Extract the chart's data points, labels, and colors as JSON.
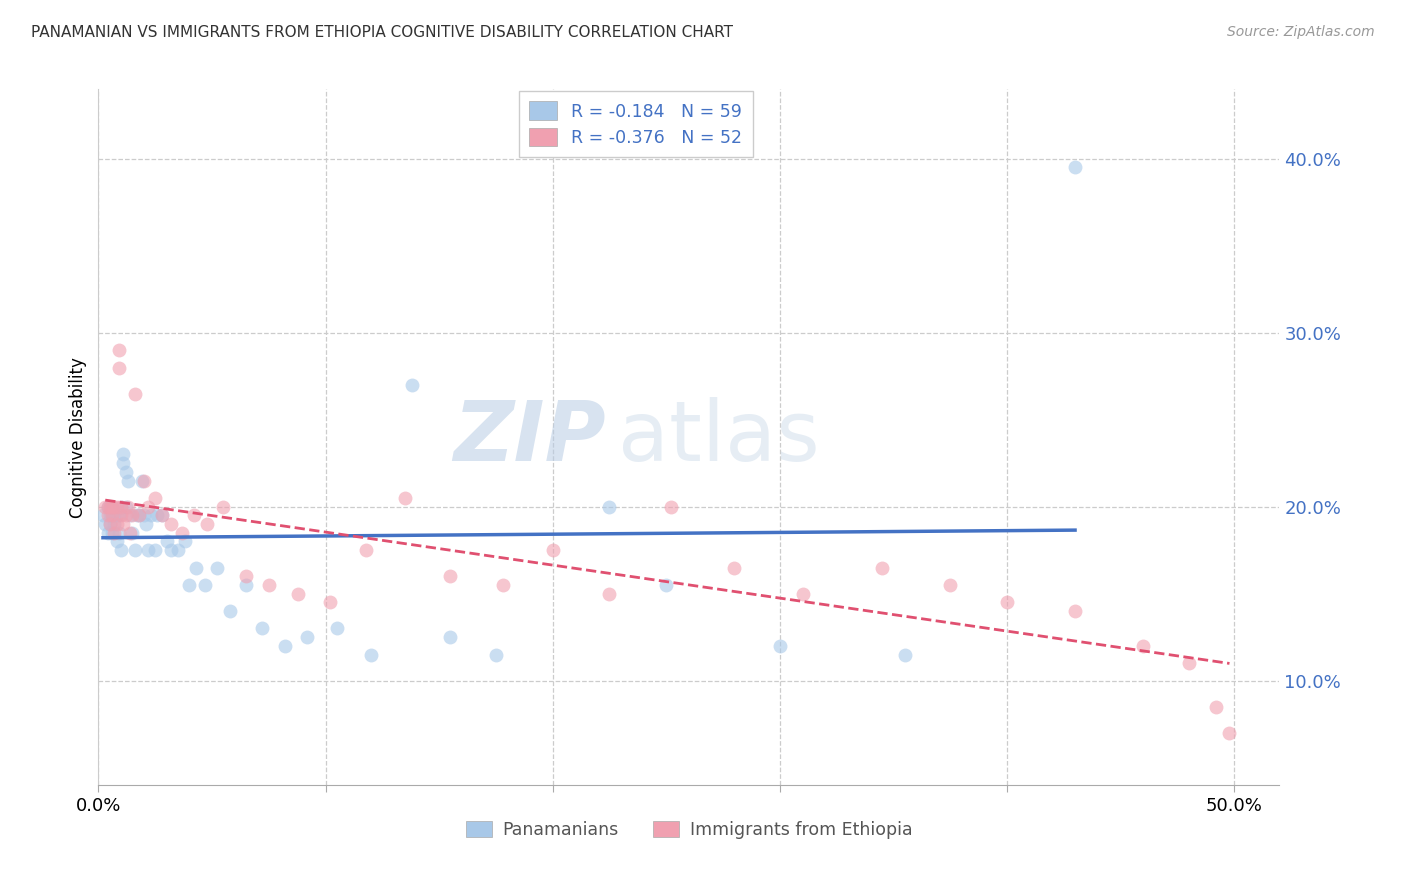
{
  "title": "PANAMANIAN VS IMMIGRANTS FROM ETHIOPIA COGNITIVE DISABILITY CORRELATION CHART",
  "source": "Source: ZipAtlas.com",
  "ylabel": "Cognitive Disability",
  "xlim": [
    0.0,
    0.52
  ],
  "ylim": [
    0.04,
    0.44
  ],
  "ytick_vals": [
    0.1,
    0.2,
    0.3,
    0.4
  ],
  "legend_r1": "-0.184",
  "legend_n1": "59",
  "legend_r2": "-0.376",
  "legend_n2": "52",
  "watermark_zip": "ZIP",
  "watermark_atlas": "atlas",
  "blue_scatter_color": "#a8c8e8",
  "pink_scatter_color": "#f0a0b0",
  "blue_line_color": "#4472c4",
  "pink_line_color": "#e05070",
  "scatter_alpha": 0.6,
  "scatter_size": 100,
  "pan_x": [
    0.002,
    0.003,
    0.004,
    0.004,
    0.005,
    0.005,
    0.005,
    0.006,
    0.006,
    0.006,
    0.007,
    0.007,
    0.008,
    0.008,
    0.009,
    0.009,
    0.01,
    0.01,
    0.011,
    0.011,
    0.012,
    0.012,
    0.013,
    0.014,
    0.015,
    0.016,
    0.017,
    0.018,
    0.019,
    0.02,
    0.021,
    0.022,
    0.023,
    0.025,
    0.026,
    0.028,
    0.03,
    0.032,
    0.035,
    0.038,
    0.04,
    0.043,
    0.047,
    0.052,
    0.058,
    0.065,
    0.072,
    0.082,
    0.092,
    0.105,
    0.12,
    0.138,
    0.155,
    0.175,
    0.225,
    0.25,
    0.3,
    0.355,
    0.43
  ],
  "pan_y": [
    0.195,
    0.19,
    0.185,
    0.2,
    0.19,
    0.195,
    0.2,
    0.185,
    0.195,
    0.2,
    0.19,
    0.195,
    0.18,
    0.195,
    0.185,
    0.195,
    0.2,
    0.175,
    0.23,
    0.225,
    0.22,
    0.2,
    0.215,
    0.195,
    0.185,
    0.175,
    0.195,
    0.195,
    0.215,
    0.195,
    0.19,
    0.175,
    0.195,
    0.175,
    0.195,
    0.195,
    0.18,
    0.175,
    0.175,
    0.18,
    0.155,
    0.165,
    0.155,
    0.165,
    0.14,
    0.155,
    0.13,
    0.12,
    0.125,
    0.13,
    0.115,
    0.27,
    0.125,
    0.115,
    0.2,
    0.155,
    0.12,
    0.115,
    0.395
  ],
  "eth_x": [
    0.003,
    0.004,
    0.004,
    0.005,
    0.005,
    0.006,
    0.006,
    0.007,
    0.007,
    0.008,
    0.008,
    0.009,
    0.009,
    0.01,
    0.01,
    0.011,
    0.012,
    0.013,
    0.014,
    0.015,
    0.016,
    0.018,
    0.02,
    0.022,
    0.025,
    0.028,
    0.032,
    0.037,
    0.042,
    0.048,
    0.055,
    0.065,
    0.075,
    0.088,
    0.102,
    0.118,
    0.135,
    0.155,
    0.178,
    0.2,
    0.225,
    0.252,
    0.28,
    0.31,
    0.345,
    0.375,
    0.4,
    0.43,
    0.46,
    0.48,
    0.492,
    0.498
  ],
  "eth_y": [
    0.2,
    0.195,
    0.2,
    0.19,
    0.2,
    0.195,
    0.2,
    0.185,
    0.2,
    0.19,
    0.2,
    0.28,
    0.29,
    0.195,
    0.2,
    0.19,
    0.195,
    0.2,
    0.185,
    0.195,
    0.265,
    0.195,
    0.215,
    0.2,
    0.205,
    0.195,
    0.19,
    0.185,
    0.195,
    0.19,
    0.2,
    0.16,
    0.155,
    0.15,
    0.145,
    0.175,
    0.205,
    0.16,
    0.155,
    0.175,
    0.15,
    0.2,
    0.165,
    0.15,
    0.165,
    0.155,
    0.145,
    0.14,
    0.12,
    0.11,
    0.085,
    0.07
  ]
}
